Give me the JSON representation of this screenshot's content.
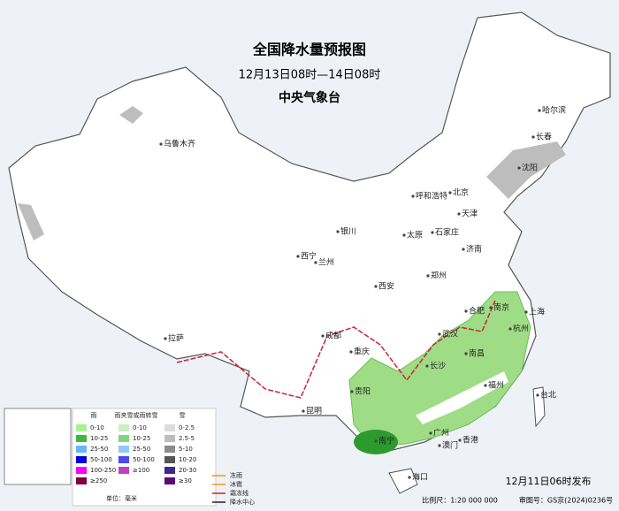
{
  "header": {
    "title": "全国降水量预报图",
    "subtitle": "12月13日08时—14日08时",
    "issuer": "中央气象台"
  },
  "cities": [
    "乌鲁木齐",
    "哈尔滨",
    "长春",
    "沈阳",
    "北京",
    "天津",
    "呼和浩特",
    "石家庄",
    "太原",
    "济南",
    "银川",
    "西宁",
    "兰州",
    "西安",
    "郑州",
    "合肥",
    "南京",
    "上海",
    "杭州",
    "武汉",
    "成都",
    "重庆",
    "长沙",
    "南昌",
    "拉萨",
    "贵阳",
    "昆明",
    "南宁",
    "广州",
    "澳门",
    "香港",
    "福州",
    "台北",
    "海口"
  ],
  "legend": {
    "rain": {
      "title": "雨",
      "items": [
        "0-10",
        "10-25",
        "25-50",
        "50-100",
        "100-250",
        "≥250"
      ]
    },
    "sleet": {
      "title": "雨夹雪或雨转雪",
      "items": [
        "0-10",
        "10-25",
        "25-50",
        "50-100",
        "≥100"
      ]
    },
    "snow": {
      "title": "雪",
      "items": [
        "0-2.5",
        "2.5-5",
        "5-10",
        "10-20",
        "20-30",
        "≥30"
      ]
    },
    "unit": "单位：毫米",
    "symbols": [
      "冻雨",
      "冰雹",
      "霜冻线",
      "降水中心"
    ]
  },
  "footer": {
    "issued": "12月11日06时发布",
    "scale": "比例尺：1:20 000 000",
    "approval": "审图号：GS京(2024)0236号"
  }
}
